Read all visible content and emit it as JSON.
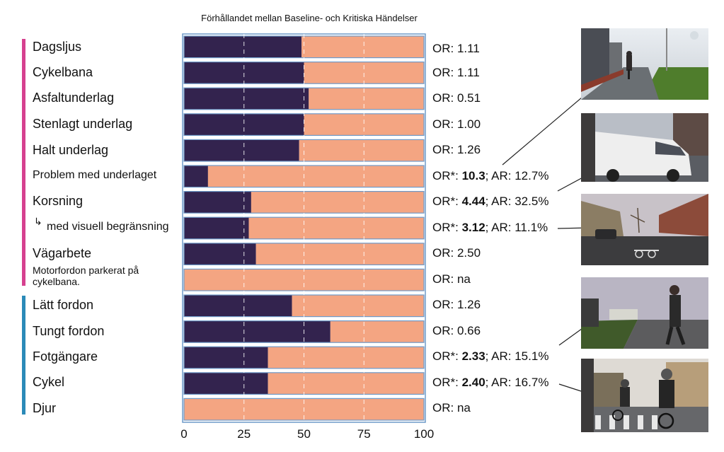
{
  "chart_data": {
    "type": "bar",
    "stacked": true,
    "orientation": "horizontal",
    "title": "Förhållandet mellan Baseline- och Kritiska Händelser",
    "xlim": [
      0,
      100
    ],
    "xticks": [
      "0",
      "25",
      "50",
      "75",
      "100"
    ],
    "grid": "vertical dashed",
    "categories": [
      "Dagsljus",
      "Cykelbana",
      "Asfaltunderlag",
      "Stenlagt underlag",
      "Halt underlag",
      "Problem med underlaget",
      "Korsning",
      "med visuell begränsning",
      "Vägarbete",
      "Motorfordon parkerat på cykelbana.",
      "Lätt fordon",
      "Tungt fordon",
      "Fotgängare",
      "Cykel",
      "Djur"
    ],
    "category_groups": [
      {
        "color": "#d6408f",
        "range": [
          0,
          9
        ]
      },
      {
        "color": "#2b8ab8",
        "range": [
          10,
          14
        ]
      }
    ],
    "series": [
      {
        "color": "#33234e",
        "values": [
          49,
          50,
          52,
          50,
          48,
          10,
          28,
          27,
          30,
          0,
          45,
          61,
          35,
          35,
          0
        ]
      },
      {
        "color": "#f4a582",
        "values": [
          51,
          50,
          48,
          50,
          52,
          90,
          72,
          73,
          70,
          100,
          55,
          39,
          65,
          65,
          100
        ]
      }
    ],
    "annotations": [
      {
        "prefix": "OR: ",
        "bold": "",
        "suffix": "1.11"
      },
      {
        "prefix": "OR: ",
        "bold": "",
        "suffix": "1.11"
      },
      {
        "prefix": "OR: ",
        "bold": "",
        "suffix": "0.51"
      },
      {
        "prefix": "OR: ",
        "bold": "",
        "suffix": "1.00"
      },
      {
        "prefix": "OR: ",
        "bold": "",
        "suffix": "1.26"
      },
      {
        "prefix": "OR*: ",
        "bold": "10.3",
        "suffix": "; AR: 12.7%"
      },
      {
        "prefix": "OR*: ",
        "bold": "4.44",
        "suffix": "; AR: 32.5%"
      },
      {
        "prefix": "OR*: ",
        "bold": "3.12",
        "suffix": "; AR: 11.1%"
      },
      {
        "prefix": "OR: ",
        "bold": "",
        "suffix": "2.50"
      },
      {
        "prefix": "OR: ",
        "bold": "",
        "suffix": "na"
      },
      {
        "prefix": "OR: ",
        "bold": "",
        "suffix": "1.26"
      },
      {
        "prefix": "OR: ",
        "bold": "",
        "suffix": "0.66"
      },
      {
        "prefix": "OR*: ",
        "bold": "2.33",
        "suffix": "; AR: 15.1%"
      },
      {
        "prefix": "OR*: ",
        "bold": "2.40",
        "suffix": "; AR: 16.7%"
      },
      {
        "prefix": "OR: ",
        "bold": "",
        "suffix": "na"
      }
    ],
    "sub_marker": "↳",
    "photos": [
      {
        "depicts": "cyclist-on-bike-path"
      },
      {
        "depicts": "white-van-passing"
      },
      {
        "depicts": "intersection-with-buildings"
      },
      {
        "depicts": "pedestrian-crossing-path"
      },
      {
        "depicts": "cyclists-in-crosswalk"
      }
    ]
  }
}
